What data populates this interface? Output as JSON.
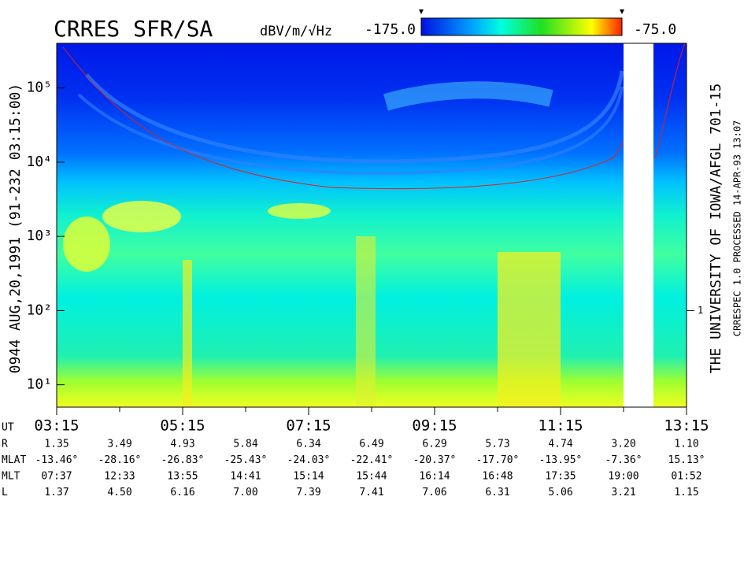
{
  "chart_data": {
    "type": "spectrogram",
    "title": "CRRES SFR/SA",
    "colorbar_unit": "dBV/m/√Hz",
    "clim": [
      -175,
      -75
    ],
    "cticks": [
      {
        "value": -175,
        "label": "-175.0"
      },
      {
        "value": -75,
        "label": "-75.0"
      }
    ],
    "left_label": "0944   AUG,20,1991   (91-232 03:15:00)",
    "right_label": "THE UNIVERSITY OF IOWA/AFGL 701-15",
    "right_note": "CRRESPEC 1.0   PROCESSED 14-APR-93  13:07",
    "yscale": "log",
    "ylim": [
      5,
      400000
    ],
    "yticks": [
      {
        "value": 10,
        "label": "10¹"
      },
      {
        "value": 100,
        "label": "10²"
      },
      {
        "value": 1000,
        "label": "10³"
      },
      {
        "value": 10000,
        "label": "10⁴"
      },
      {
        "value": 100000,
        "label": "10⁵"
      }
    ],
    "y2scale": "log",
    "y2lim": [
      0.05,
      4000
    ],
    "y2ticks": [
      1
    ],
    "xlim": [
      3.25,
      13.25
    ],
    "xticks": [
      {
        "value": 3.25,
        "label": "03:15"
      },
      {
        "value": 5.25,
        "label": "05:15"
      },
      {
        "value": 7.25,
        "label": "07:15"
      },
      {
        "value": 9.25,
        "label": "09:15"
      },
      {
        "value": 11.25,
        "label": "11:15"
      },
      {
        "value": 13.25,
        "label": "13:15"
      }
    ],
    "xminorticks": [
      4.25,
      6.25,
      8.25,
      10.25,
      12.25
    ],
    "x_label": "UT",
    "ephemeris": [
      {
        "name": "R",
        "values": [
          "1.35",
          "3.49",
          "4.93",
          "5.84",
          "6.34",
          "6.49",
          "6.29",
          "5.73",
          "4.74",
          "3.20",
          "1.10"
        ]
      },
      {
        "name": "MLAT",
        "values": [
          "-13.46°",
          "-28.16°",
          "-26.83°",
          "-25.43°",
          "-24.03°",
          "-22.41°",
          "-20.37°",
          "-17.70°",
          "-13.95°",
          "-7.36°",
          "15.13°"
        ]
      },
      {
        "name": "MLT",
        "values": [
          "07:37",
          "12:33",
          "13:55",
          "14:41",
          "15:14",
          "15:44",
          "16:14",
          "16:48",
          "17:35",
          "19:00",
          "01:52"
        ]
      },
      {
        "name": "L",
        "values": [
          "1.37",
          "4.50",
          "6.16",
          "7.00",
          "7.39",
          "7.41",
          "7.06",
          "6.31",
          "5.06",
          "3.21",
          "1.15"
        ]
      }
    ]
  }
}
